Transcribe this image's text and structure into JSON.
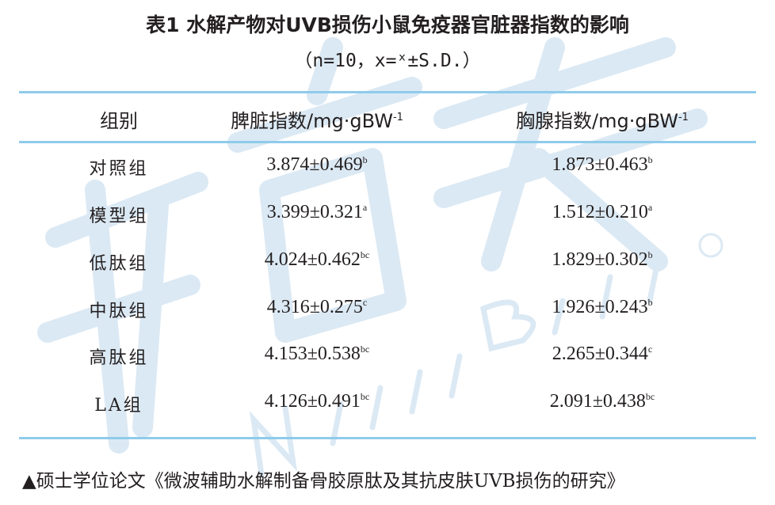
{
  "watermark": {
    "chinese": "新营养",
    "english": "New Nutrition Business",
    "mark": "®"
  },
  "title": "表1  水解产物对UVB损伤小鼠免疫器官脏器指数的影响",
  "subtitle": "（n=10，x=ˣ±S.D.）",
  "colors": {
    "rule": "#8fcbea",
    "text": "#231f20",
    "watermark": "#dbe9f4"
  },
  "table": {
    "headers": {
      "group": "组别",
      "spleen": "脾脏指数/mg·gBW",
      "spleen_sup": "-1",
      "thymus": "胸腺指数/mg·gBW",
      "thymus_sup": "-1"
    },
    "rows": [
      {
        "group": "对照组",
        "spleen": "3.874±0.469",
        "spleen_sup": "b",
        "thymus": "1.873±0.463",
        "thymus_sup": "b"
      },
      {
        "group": "模型组",
        "spleen": "3.399±0.321",
        "spleen_sup": "a",
        "thymus": "1.512±0.210",
        "thymus_sup": "a"
      },
      {
        "group": "低肽组",
        "spleen": "4.024±0.462",
        "spleen_sup": "bc",
        "thymus": "1.829±0.302",
        "thymus_sup": "b"
      },
      {
        "group": "中肽组",
        "spleen": "4.316±0.275",
        "spleen_sup": "c",
        "thymus": "1.926±0.243",
        "thymus_sup": "b"
      },
      {
        "group": "高肽组",
        "spleen": "4.153±0.538",
        "spleen_sup": "bc",
        "thymus": "2.265±0.344",
        "thymus_sup": "c"
      },
      {
        "group": "LA组",
        "spleen": "4.126±0.491",
        "spleen_sup": "bc",
        "thymus": "2.091±0.438",
        "thymus_sup": "bc"
      }
    ]
  },
  "footer": "▲硕士学位论文《微波辅助水解制备骨胶原肽及其抗皮肤UVB损伤的研究》"
}
